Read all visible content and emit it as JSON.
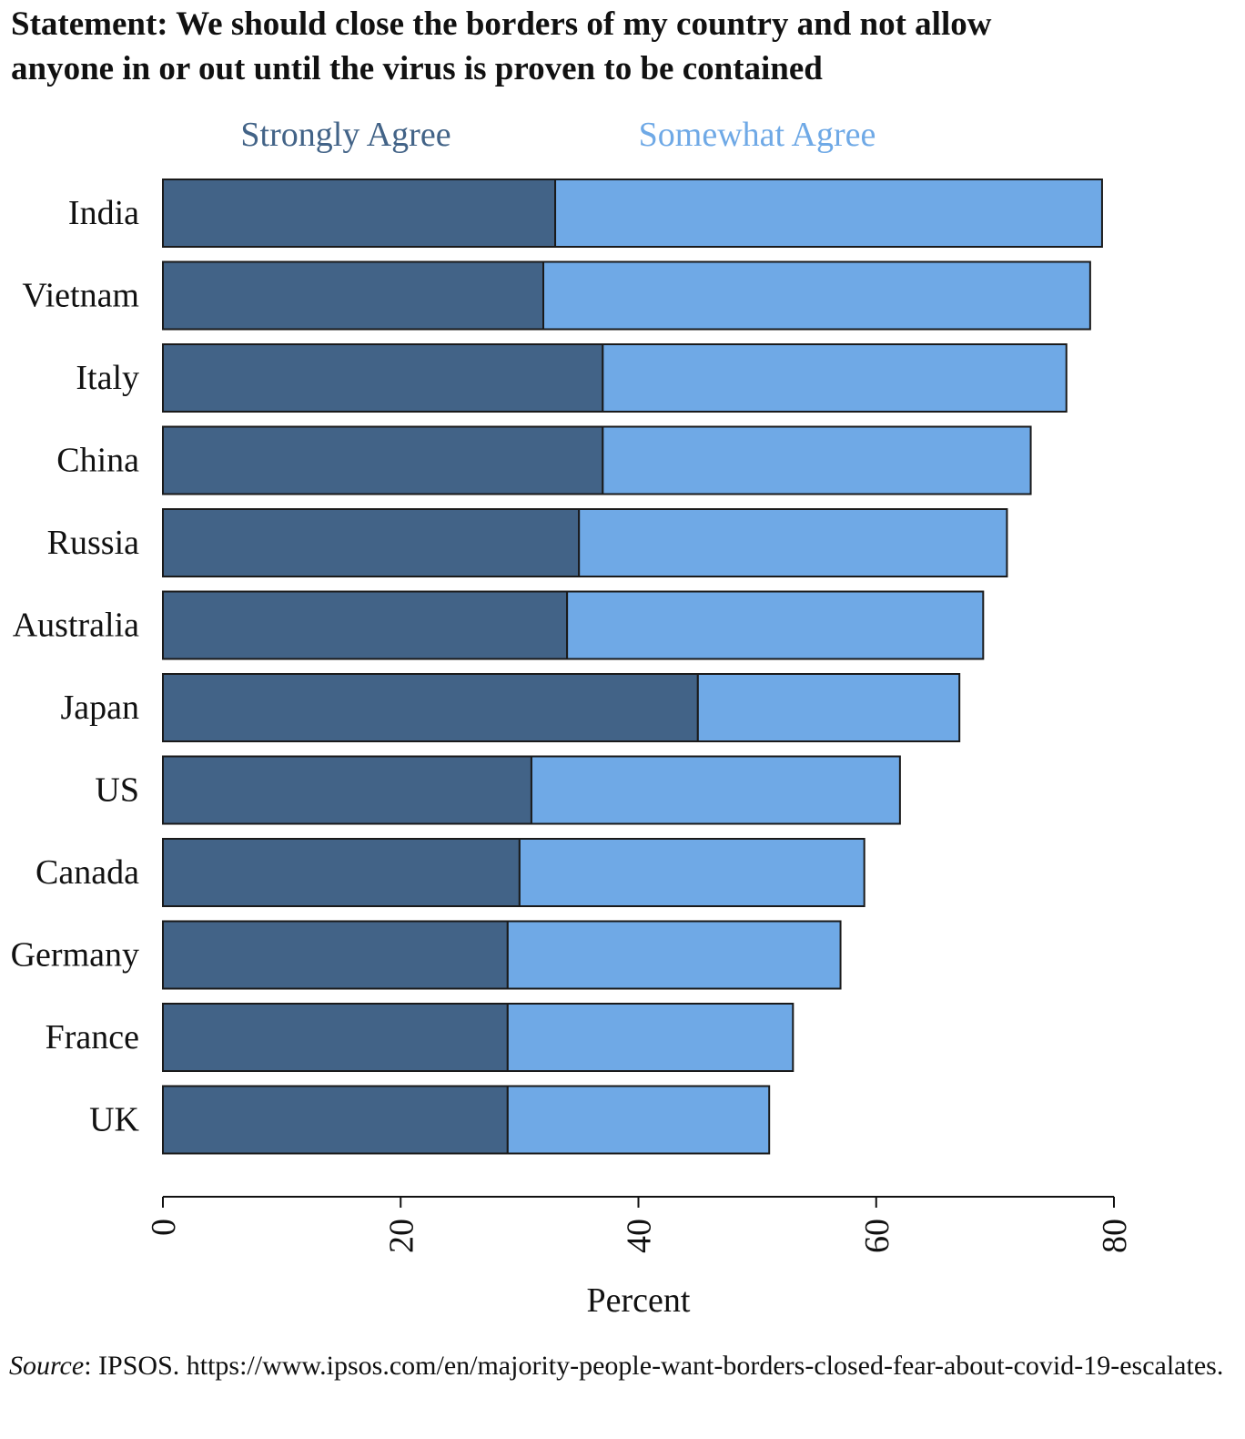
{
  "title": {
    "line1": "Statement: We should close the borders of my country and not allow",
    "line2": "anyone in or out until the virus is proven to be contained"
  },
  "source": {
    "label": "Source",
    "text": ": IPSOS. https://www.ipsos.com/en/majority-people-want-borders-closed-fear-about-covid-19-escalates."
  },
  "colors": {
    "strongly": "#426387",
    "somewhat": "#6fa9e6",
    "outline": "#1a1a1a"
  },
  "chart_data": {
    "type": "bar",
    "orientation": "horizontal",
    "stacked": true,
    "xlabel": "Percent",
    "ylabel": "",
    "xlim": [
      0,
      80
    ],
    "xticks": [
      0,
      20,
      40,
      60,
      80
    ],
    "tick_label_rotation": "vertical",
    "legend_placement": "top",
    "grid": false,
    "categories": [
      "India",
      "Vietnam",
      "Italy",
      "China",
      "Russia",
      "Australia",
      "Japan",
      "US",
      "Canada",
      "Germany",
      "France",
      "UK"
    ],
    "series": [
      {
        "name": "Strongly Agree",
        "color": "#426387",
        "values": [
          33,
          32,
          37,
          37,
          35,
          34,
          45,
          31,
          30,
          29,
          29,
          29
        ]
      },
      {
        "name": "Somewhat Agree",
        "color": "#6fa9e6",
        "values": [
          46,
          46,
          39,
          36,
          36,
          35,
          22,
          31,
          29,
          28,
          24,
          22
        ]
      }
    ]
  }
}
